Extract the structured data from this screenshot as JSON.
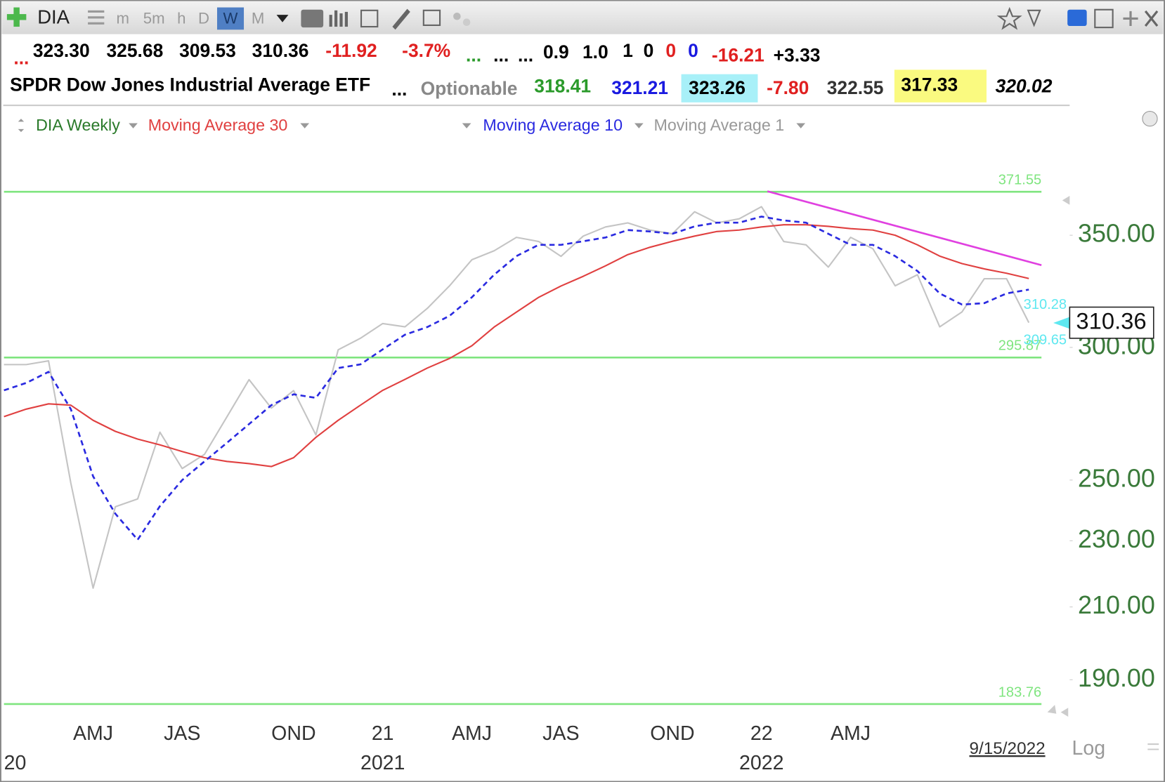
{
  "toolbar": {
    "symbol": "DIA",
    "intervals": [
      "m",
      "5m",
      "h",
      "D",
      "W",
      "M"
    ]
  },
  "quote_row": [
    "...",
    "323.30",
    "325.68",
    "309.53",
    "310.36",
    "-11.92",
    "-3.7%",
    "...",
    "...",
    "...",
    "0.9",
    "1.0",
    "1",
    "0",
    "0",
    "0",
    "-16.21",
    "+3.33"
  ],
  "info_row": [
    "SPDR Dow Jones Industrial Average ETF",
    "...",
    "Optionable",
    "318.41",
    "321.21",
    "323.26",
    "-7.80",
    "322.55",
    "317.33",
    "320.02"
  ],
  "footer": {
    "date": "9/15/2022",
    "scale": "Log"
  },
  "chart_data": {
    "type": "line",
    "title": "DIA Weekly",
    "log_scale": true,
    "grid": false,
    "ylim": [
      181.7,
      415
    ],
    "yticks": [
      {
        "value": 190,
        "label": "190.00"
      },
      {
        "value": 210,
        "label": "210.00"
      },
      {
        "value": 230,
        "label": "230.00"
      },
      {
        "value": 250,
        "label": "250.00"
      },
      {
        "value": 300,
        "label": "300.00"
      },
      {
        "value": 350,
        "label": "350.00"
      }
    ],
    "categories": [
      null,
      null,
      null,
      null,
      "AMJ",
      null,
      null,
      null,
      "JAS",
      null,
      null,
      null,
      null,
      "OND",
      null,
      null,
      null,
      "21",
      null,
      null,
      null,
      "AMJ",
      null,
      null,
      null,
      "JAS",
      null,
      null,
      null,
      null,
      "OND",
      null,
      null,
      null,
      "22",
      null,
      null,
      null,
      "AMJ",
      null,
      null,
      null,
      null,
      null,
      null,
      null,
      null
    ],
    "year_categories": [
      "20",
      null,
      null,
      null,
      null,
      null,
      null,
      null,
      null,
      null,
      null,
      null,
      null,
      null,
      null,
      null,
      null,
      "2021",
      null,
      null,
      null,
      null,
      null,
      null,
      null,
      null,
      null,
      null,
      null,
      null,
      null,
      null,
      null,
      null,
      "2022",
      null,
      null,
      null,
      null,
      null,
      null,
      null,
      null,
      null,
      null,
      null,
      null
    ],
    "series": [
      {
        "name": "Moving Average 1",
        "color": "#c4c4c4",
        "values": [
          293,
          293,
          294.5,
          249,
          215.5,
          241,
          243.6,
          267,
          254,
          259,
          272.6,
          287,
          276,
          282.7,
          266,
          299,
          303.8,
          310,
          308.6,
          316.5,
          326.5,
          338.4,
          342.6,
          349,
          347,
          340,
          349.6,
          354,
          356,
          352.5,
          350.7,
          361.5,
          356,
          358,
          364,
          347,
          345.4,
          335,
          349,
          343.6,
          326.5,
          331.5,
          308.6,
          315,
          329.7,
          329.7,
          310.36
        ]
      },
      {
        "name": "Moving Average 30",
        "color": "#e04040",
        "values": [
          272.8,
          275.6,
          277.6,
          277.1,
          271.4,
          267.3,
          264.5,
          262.4,
          260,
          257.8,
          256.5,
          255.7,
          254.7,
          257.8,
          265.1,
          271.4,
          277.1,
          282.8,
          287.1,
          291.6,
          295.5,
          300.7,
          308.5,
          314.9,
          321.4,
          326.4,
          330.8,
          335.6,
          340.8,
          344.3,
          347.1,
          349.6,
          351.8,
          352.5,
          354,
          355.1,
          355.1,
          354.3,
          353.2,
          352.5,
          350,
          345.4,
          340.1,
          336.6,
          334.2,
          332.2,
          329.8
        ]
      },
      {
        "name": "Moving Average 10",
        "color": "#2a2ae0",
        "dashed": true,
        "values": [
          282.8,
          285.7,
          290.1,
          275.6,
          251.3,
          238.7,
          230.3,
          241.2,
          250,
          256.5,
          263.1,
          270,
          277.1,
          281.3,
          279.9,
          291.6,
          293.1,
          299.2,
          305.3,
          308.5,
          313.3,
          321.4,
          331.5,
          340.1,
          345.4,
          345.4,
          347.1,
          348.9,
          352.5,
          351.8,
          350.7,
          354.3,
          356.1,
          356.1,
          359.1,
          357.2,
          356.1,
          350.7,
          345.4,
          345.4,
          340.1,
          333.2,
          323.1,
          318.2,
          318.8,
          323.1,
          324.8
        ]
      }
    ],
    "levels": [
      371.55,
      295.87,
      183.76
    ],
    "level_color": "#7fe57f",
    "trendline": {
      "color": "#e040e0",
      "values": [
        371.8,
        335.9
      ]
    },
    "ma_markers": [
      310.28,
      309.65
    ],
    "marker_color": "#5ee8f0",
    "last_price": 310.36
  }
}
